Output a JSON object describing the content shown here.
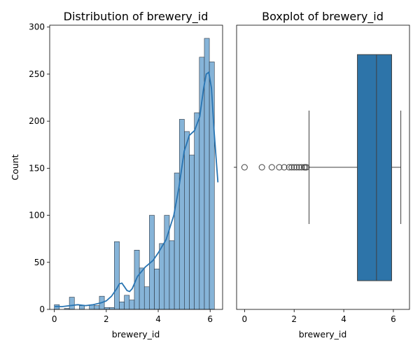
{
  "chart_data": [
    {
      "type": "histogram",
      "title": "Distribution of brewery_id",
      "xlabel": "brewery_id",
      "ylabel": "Count",
      "xlim": [
        -0.18,
        6.48
      ],
      "ylim": [
        0,
        302
      ],
      "xticks": [
        0,
        2,
        4,
        6
      ],
      "yticks": [
        0,
        50,
        100,
        150,
        200,
        250,
        300
      ],
      "bin_start": 0,
      "bin_width": 0.1926,
      "counts": [
        5,
        0,
        1,
        13,
        0,
        4,
        0,
        5,
        4,
        14,
        2,
        2,
        72,
        8,
        15,
        10,
        63,
        44,
        24,
        100,
        43,
        70,
        100,
        73,
        145,
        202,
        189,
        164,
        209,
        268,
        288,
        263
      ],
      "kde": {
        "x": [
          0,
          0.3,
          0.6,
          0.9,
          1.2,
          1.5,
          1.8,
          2.0,
          2.2,
          2.4,
          2.5,
          2.6,
          2.7,
          2.8,
          2.9,
          3.0,
          3.2,
          3.5,
          3.8,
          4.0,
          4.3,
          4.6,
          4.8,
          5.0,
          5.2,
          5.4,
          5.6,
          5.75,
          5.85,
          5.95,
          6.05,
          6.15,
          6.3
        ],
        "y": [
          3,
          3,
          4,
          5,
          4,
          5,
          7,
          9,
          14,
          22,
          27,
          28,
          24,
          20,
          19,
          22,
          35,
          45,
          52,
          60,
          74,
          100,
          130,
          168,
          185,
          190,
          205,
          235,
          250,
          252,
          235,
          190,
          135
        ]
      },
      "bar_color": "#86b4d8",
      "line_color": "#2874b2"
    },
    {
      "type": "boxplot",
      "title": "Boxplot of brewery_id",
      "xlabel": "brewery_id",
      "xlim": [
        -0.32,
        6.65
      ],
      "xticks": [
        0,
        2,
        4,
        6
      ],
      "whisker_low": 2.6,
      "q1": 4.55,
      "median": 5.32,
      "q3": 5.93,
      "whisker_high": 6.3,
      "outliers": [
        0,
        0.7,
        1.1,
        1.4,
        1.6,
        1.8,
        1.9,
        2.0,
        2.1,
        2.2,
        2.3,
        2.4,
        2.45,
        2.5
      ],
      "box_color": "#2d74a9"
    }
  ]
}
